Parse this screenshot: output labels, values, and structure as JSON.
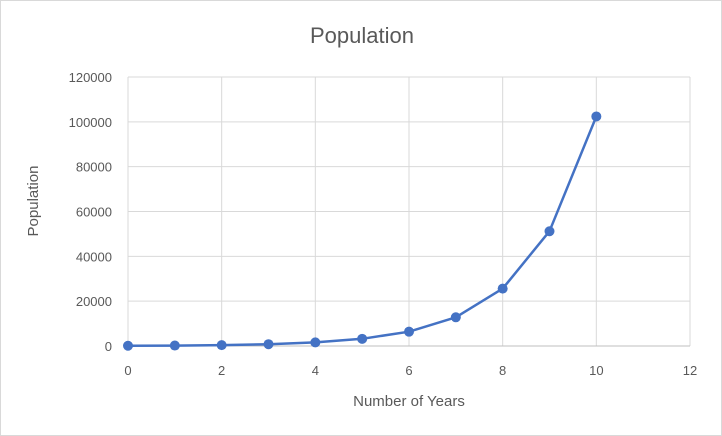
{
  "chart_data": {
    "type": "scatter",
    "title": "Population",
    "xlabel": "Number of Years",
    "ylabel": "Population",
    "xlim": [
      0,
      12
    ],
    "ylim": [
      0,
      120000
    ],
    "x_ticks": [
      "0",
      "2",
      "4",
      "6",
      "8",
      "10",
      "12"
    ],
    "y_ticks": [
      "0",
      "20000",
      "40000",
      "60000",
      "80000",
      "100000",
      "120000"
    ],
    "grid": true,
    "legend": "none",
    "series": [
      {
        "color": "#4472c4",
        "x": [
          0,
          1,
          2,
          3,
          4,
          5,
          6,
          7,
          8,
          9,
          10
        ],
        "y": [
          100,
          200,
          400,
          800,
          1600,
          3200,
          6400,
          12800,
          25600,
          51200,
          102400
        ]
      }
    ]
  }
}
